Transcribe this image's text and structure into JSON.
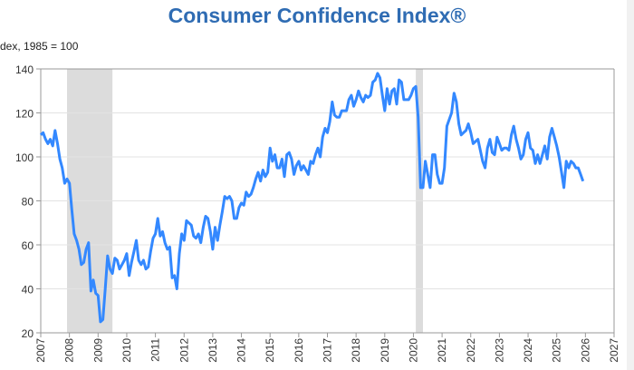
{
  "chart_data": {
    "type": "line",
    "title": "Consumer Confidence Index®",
    "ylabel": "dex, 1985 = 100",
    "xlabel": "",
    "xlim": [
      2007,
      2027
    ],
    "ylim": [
      20,
      140
    ],
    "yticks": [
      "20",
      "40",
      "60",
      "80",
      "100",
      "120",
      "140"
    ],
    "xticks": [
      "2007",
      "2008",
      "2009",
      "2010",
      "2011",
      "2012",
      "2013",
      "2014",
      "2015",
      "2016",
      "2017",
      "2018",
      "2019",
      "2020",
      "2021",
      "2022",
      "2023",
      "2024",
      "2025",
      "2026",
      "2027"
    ],
    "grid": "horizontal",
    "line_color": "#3388ff",
    "recession_color": "#dcdcdc",
    "recessions": [
      [
        "2007-12",
        "2009-06"
      ],
      [
        "2020-02",
        "2020-04"
      ]
    ],
    "series": [
      {
        "start": "2007-01",
        "frequency": "monthly",
        "values": [
          110,
          111,
          108,
          106,
          108,
          105,
          112,
          106,
          99,
          95,
          88,
          90,
          88,
          76,
          65,
          62,
          58,
          51,
          52,
          58,
          61,
          39,
          44,
          38,
          37,
          25,
          26,
          40,
          55,
          49,
          47,
          54,
          53,
          49,
          51,
          53,
          56,
          46,
          52,
          57,
          62,
          53,
          51,
          53,
          49,
          50,
          57,
          63,
          65,
          72,
          64,
          66,
          61,
          58,
          59,
          45,
          46,
          40,
          56,
          65,
          62,
          71,
          70,
          69,
          64,
          63,
          65,
          61,
          68,
          73,
          72,
          66,
          58,
          68,
          62,
          69,
          75,
          82,
          81,
          82,
          80,
          72,
          72,
          77,
          79,
          78,
          84,
          82,
          83,
          86,
          90,
          93,
          89,
          94,
          91,
          93,
          104,
          98,
          101,
          95,
          95,
          99,
          91,
          101,
          102,
          99,
          92,
          96,
          98,
          94,
          96,
          94,
          92,
          98,
          97,
          101,
          104,
          100,
          109,
          113,
          111,
          116,
          125,
          119,
          118,
          118,
          121,
          121,
          121,
          126,
          128,
          123,
          126,
          130,
          127,
          125,
          128,
          127,
          128,
          134,
          135,
          138,
          136,
          128,
          121,
          131,
          124,
          130,
          131,
          124,
          135,
          134,
          126,
          126,
          126,
          128,
          131,
          132,
          118,
          86,
          86,
          98,
          92,
          86,
          101,
          101,
          92,
          88,
          88,
          95,
          114,
          117,
          120,
          129,
          125,
          115,
          110,
          111,
          112,
          115,
          111,
          106,
          107,
          108,
          103,
          98,
          95,
          104,
          108,
          102,
          101,
          109,
          106,
          103,
          104,
          104,
          103,
          110,
          114,
          108,
          104,
          99,
          101,
          108,
          111,
          104,
          103,
          97,
          101,
          97,
          101,
          105,
          99,
          109,
          113,
          109,
          105,
          100,
          93,
          86,
          98,
          95,
          98,
          97,
          95,
          95,
          92,
          89
        ]
      }
    ]
  }
}
